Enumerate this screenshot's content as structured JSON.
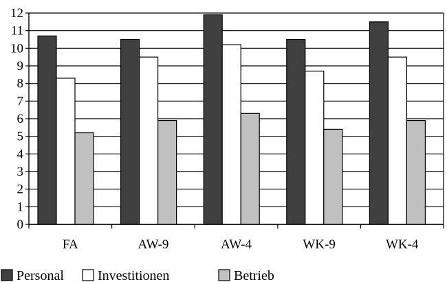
{
  "chart_data": {
    "type": "bar",
    "categories": [
      "FA",
      "AW-9",
      "AW-4",
      "WK-9",
      "WK-4"
    ],
    "series": [
      {
        "name": "Personal",
        "values": [
          10.7,
          10.5,
          11.9,
          10.5,
          11.5
        ],
        "color": "#404040"
      },
      {
        "name": "Investitionen",
        "values": [
          8.3,
          9.5,
          10.2,
          8.7,
          9.5
        ],
        "color": "#ffffff"
      },
      {
        "name": "Betrieb",
        "values": [
          5.2,
          5.9,
          6.3,
          5.4,
          5.9
        ],
        "color": "#c0c0c0"
      }
    ],
    "ylim": [
      0,
      12
    ],
    "yticks": [
      0,
      1,
      2,
      3,
      4,
      5,
      6,
      7,
      8,
      9,
      10,
      11,
      12
    ],
    "grid": true,
    "legend_position": "bottom-left"
  }
}
